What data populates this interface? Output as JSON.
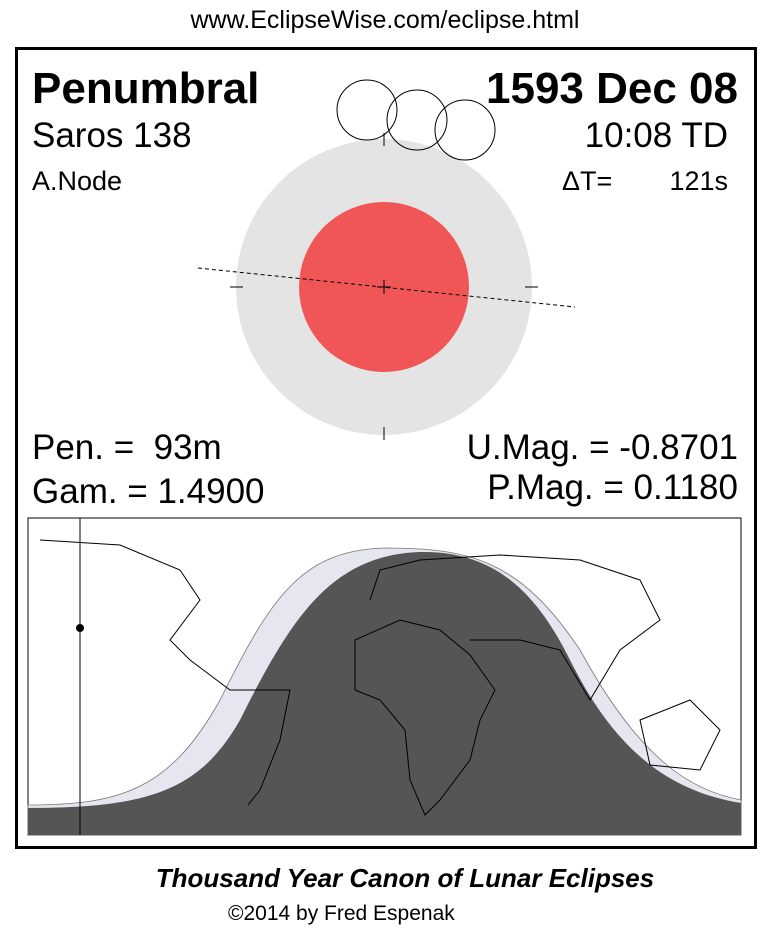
{
  "header": {
    "url": "www.EclipseWise.com/eclipse.html"
  },
  "eclipse": {
    "type": "Penumbral",
    "date": "1593 Dec 08",
    "saros": "Saros 138",
    "time": "10:08 TD",
    "node": "A.Node",
    "delta_t_label": "ΔT=",
    "delta_t_value": "121s",
    "pen_duration": "Pen. =  93m",
    "gamma": "Gam. = 1.4900",
    "umbral_mag": "U.Mag. = -0.8701",
    "penumbral_mag": "P.Mag. = 0.1180"
  },
  "colors": {
    "umbra": "#f05656",
    "penumbra": "#e4e4e4",
    "night": "#555555",
    "penumbral_zone": "#e6e6f0"
  },
  "footer": {
    "title": "Thousand Year Canon of Lunar Eclipses",
    "copyright": "©2014 by Fred Espenak"
  }
}
